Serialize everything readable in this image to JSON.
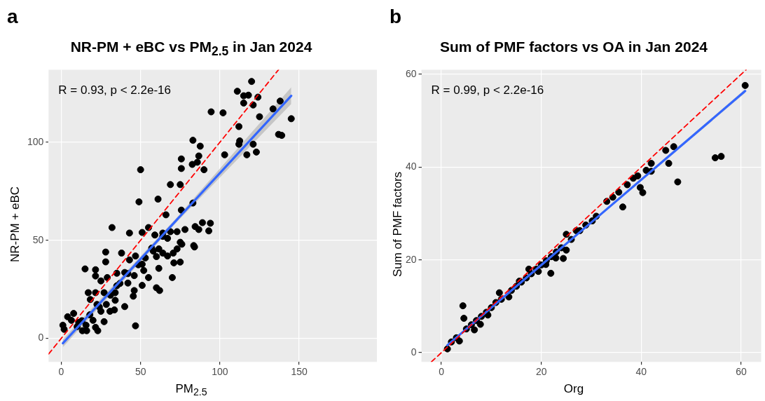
{
  "chart_data": [
    {
      "type": "scatter",
      "title": "NR-PM + eBC vs PM$_{2.5}$ in Jan 2024",
      "xlabel": "PM$_{2.5}$",
      "ylabel": "NR-PM + eBC",
      "annotations": [
        "a",
        "R = 0.93, p < 2.2e-16"
      ],
      "xlim": [
        -8,
        199
      ],
      "ylim": [
        -12,
        137
      ],
      "xticks": [
        0,
        50,
        100,
        150
      ],
      "yticks": [
        0,
        50,
        100
      ],
      "grid": true,
      "marker": "circle",
      "series": [
        {
          "color": "#000000",
          "x": [
            120,
            111,
            115,
            118,
            124,
            115,
            121,
            138,
            133.5,
            94.5,
            102,
            125,
            145,
            112,
            137,
            139,
            83,
            112.5,
            112,
            87.6,
            121,
            103,
            117,
            123,
            75.7,
            86.7,
            82.6,
            85.8,
            75.7,
            90,
            50,
            68.8,
            75,
            49,
            61,
            66,
            83,
            75.7,
            32,
            89,
            94,
            93,
            84.4,
            86.7,
            78,
            73,
            68.8,
            43,
            51,
            55,
            83.5,
            84,
            75,
            76,
            67,
            59,
            64,
            58,
            61.5,
            64,
            67,
            70.6,
            73,
            60,
            71,
            75,
            70,
            61.5,
            48.6,
            51,
            52,
            55,
            60,
            62,
            51,
            46.8,
            43,
            38,
            28,
            28,
            15,
            21.6,
            21.6,
            25,
            29,
            35,
            40,
            46,
            42,
            35,
            46,
            45.4,
            40,
            34,
            33.5,
            28.4,
            27,
            21.6,
            17,
            18.3,
            22.5,
            25,
            27,
            23,
            46.8,
            16,
            13.3,
            7.8,
            4,
            1,
            1.8,
            6.4,
            11,
            15.6,
            20,
            21.6,
            30.7,
            34,
            10,
            13,
            18,
            24,
            31,
            37,
            42,
            53,
            57,
            64
          ],
          "values": [
            131,
            126,
            123.7,
            124,
            123,
            120,
            119,
            121,
            117,
            115.5,
            115,
            113,
            112,
            108,
            104,
            103.5,
            101,
            100.7,
            99,
            98,
            99,
            93.6,
            93.6,
            95,
            91.5,
            93,
            88.7,
            89.8,
            86.6,
            86,
            86,
            78.4,
            78.4,
            69.6,
            71,
            63,
            69,
            65.4,
            56.5,
            59,
            58.7,
            54.8,
            57,
            55.5,
            55.5,
            54.4,
            54.4,
            53.7,
            54,
            56.5,
            47.3,
            46.6,
            49,
            48,
            51,
            52.7,
            53.7,
            44.5,
            45.6,
            43.5,
            42,
            43.5,
            45.6,
            41.7,
            38.5,
            38.9,
            31,
            35.7,
            37.5,
            37.8,
            34.6,
            31,
            25.8,
            24.4,
            27,
            42,
            40,
            43.5,
            44,
            39,
            35.4,
            35,
            31.8,
            29.3,
            31,
            33.2,
            33.6,
            32,
            28.2,
            26.8,
            24.4,
            21.5,
            16.2,
            19.4,
            14.5,
            17.3,
            23.3,
            23.3,
            23.3,
            19.8,
            17.3,
            13.8,
            8.5,
            3.9,
            6.4,
            3.9,
            3.9,
            12.7,
            11,
            6.7,
            4.6,
            9.2,
            8.1,
            6.7,
            9.2,
            5.6,
            13.8,
            23.3,
            6,
            9,
            12,
            16,
            22,
            28,
            33,
            41,
            46,
            52
          ]
        },
        {
          "type": "line",
          "marker": "none",
          "color": "#3366ff",
          "x": [
            1,
            73,
            145
          ],
          "values": [
            -2.5,
            60.6,
            123.7
          ],
          "lower": [
            -4.5,
            59.5,
            119.5
          ],
          "upper": [
            -0.5,
            61.7,
            128
          ]
        },
        {
          "type": "line",
          "marker": "none",
          "color": "#ff0000",
          "line_style": "dashed",
          "x": [
            -8,
            137
          ],
          "values": [
            -8,
            137
          ]
        }
      ]
    },
    {
      "type": "scatter",
      "title": "Sum of PMF factors vs OA in Jan 2024",
      "xlabel": "Org",
      "ylabel": "Sum of PMF factors",
      "annotations": [
        "b",
        "R = 0.99, p < 2.2e-16"
      ],
      "xlim": [
        -4,
        64
      ],
      "ylim": [
        -2,
        61
      ],
      "xticks": [
        0,
        20,
        40,
        60
      ],
      "yticks": [
        0,
        20,
        40,
        60
      ],
      "grid": true,
      "marker": "circle",
      "series": [
        {
          "color": "#000000",
          "x": [
            60.8,
            54.8,
            56,
            46.5,
            44.9,
            45.5,
            47.3,
            42,
            42,
            41,
            39.3,
            38.4,
            39.8,
            40.3,
            37.2,
            35.5,
            36.3,
            34.3,
            33.1,
            30.2,
            31,
            28.9,
            27.7,
            25,
            25,
            24.4,
            22.9,
            21.9,
            20.9,
            19.4,
            17.5,
            15.6,
            13.5,
            11.6,
            4.3,
            4.5,
            7.8,
            6.6,
            9.3,
            3.6,
            1.2,
            10.9,
            27,
            2,
            3,
            5,
            6,
            7,
            8,
            9,
            10,
            12,
            14,
            15,
            16,
            17,
            18,
            19,
            20,
            21,
            22,
            23,
            24,
            26
          ],
          "values": [
            57.6,
            42,
            42.3,
            44.4,
            43.6,
            40.8,
            36.8,
            40.8,
            39.1,
            39.3,
            38.1,
            37.6,
            35.6,
            34.5,
            36.2,
            34.6,
            31.4,
            33.5,
            32.6,
            28.4,
            29.4,
            27.5,
            26.3,
            25.5,
            22.1,
            20.3,
            20.4,
            17.1,
            19,
            17.5,
            18,
            15.4,
            12,
            12.9,
            10.1,
            7.4,
            6.1,
            4.9,
            8.1,
            2.5,
            0.8,
            10.8,
            26.3,
            2.3,
            3.2,
            5.1,
            6,
            6.9,
            7.8,
            8.7,
            9.7,
            11.5,
            13.4,
            14.3,
            15.2,
            16.1,
            17,
            18,
            18.9,
            19.8,
            20.7,
            21.7,
            22.6,
            24.4
          ]
        },
        {
          "type": "line",
          "marker": "none",
          "color": "#3366ff",
          "x": [
            1.2,
            31,
            60.8
          ],
          "values": [
            1.6,
            29,
            56.4
          ],
          "lower": [
            1.3,
            28.8,
            56
          ],
          "upper": [
            1.8,
            29.2,
            56.8
          ]
        },
        {
          "type": "line",
          "marker": "none",
          "color": "#ff0000",
          "line_style": "dashed",
          "x": [
            -2,
            61
          ],
          "values": [
            -2,
            61
          ]
        }
      ]
    }
  ]
}
